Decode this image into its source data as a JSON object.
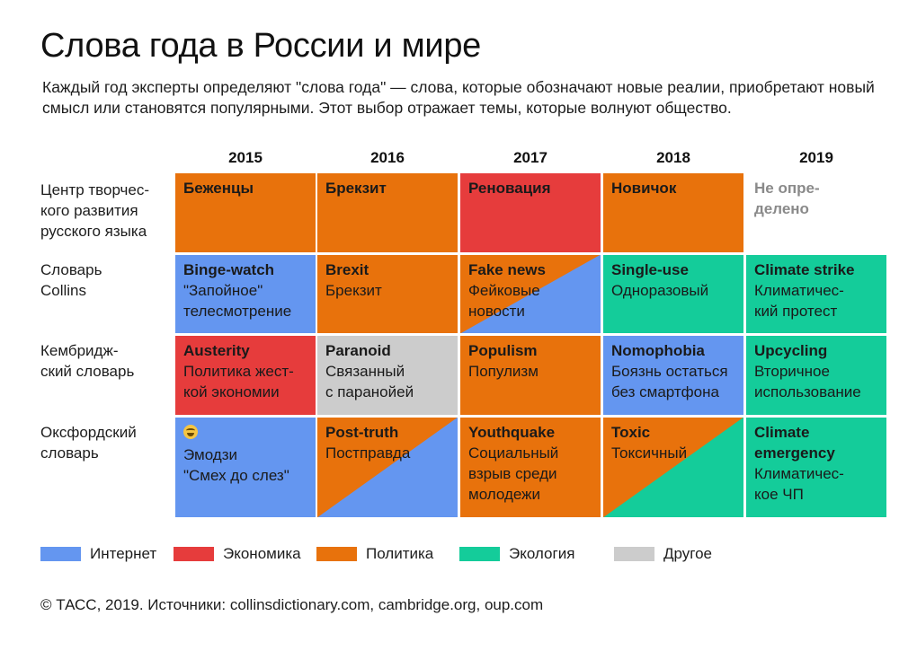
{
  "title": "Слова года в России и мире",
  "subtitle": "Каждый год эксперты определяют \"слова года\" — слова, которые обозначают новые реалии, приобретают новый смысл или становятся популярными. Этот выбор отражает темы, которые волнуют общество.",
  "source": "© ТАСС, 2019. Источники: collinsdictionary.com, cambridge.org, oup.com",
  "colors": {
    "internet": "#6496f0",
    "economy": "#e63c3c",
    "politics": "#e8720c",
    "ecology": "#14cc9a",
    "other": "#cccccc",
    "none": "#ffffff"
  },
  "chart_data": {
    "type": "table",
    "columns": [
      "2015",
      "2016",
      "2017",
      "2018",
      "2019"
    ],
    "rows": [
      {
        "label": "Центр творчес-\nкого развития\nрусского языка",
        "cells": [
          {
            "en": "Беженцы",
            "ru": "",
            "cat": [
              "politics"
            ]
          },
          {
            "en": "Брекзит",
            "ru": "",
            "cat": [
              "politics"
            ]
          },
          {
            "en": "Реновация",
            "ru": "",
            "cat": [
              "economy"
            ]
          },
          {
            "en": "Новичок",
            "ru": "",
            "cat": [
              "politics"
            ]
          },
          {
            "en": "Не опре-\nделено",
            "ru": "",
            "cat": [
              "none"
            ],
            "muted": true
          }
        ]
      },
      {
        "label": "Словарь\nCollins",
        "cells": [
          {
            "en": "Binge-watch",
            "ru": "\"Запойное\"\nтелесмотрение",
            "cat": [
              "internet"
            ]
          },
          {
            "en": "Brexit",
            "ru": "Брекзит",
            "cat": [
              "politics"
            ]
          },
          {
            "en": "Fake news",
            "ru": "Фейковые\nновости",
            "cat": [
              "politics",
              "internet"
            ]
          },
          {
            "en": "Single-use",
            "ru": "Одноразовый",
            "cat": [
              "ecology"
            ]
          },
          {
            "en": "Climate strike",
            "ru": "Климатичес-\nкий протест",
            "cat": [
              "ecology"
            ]
          }
        ]
      },
      {
        "label": "Кембридж-\nский словарь",
        "cells": [
          {
            "en": "Austerity",
            "ru": "Политика жест-\nкой экономии",
            "cat": [
              "economy"
            ]
          },
          {
            "en": "Paranoid",
            "ru": "Связанный\nс паранойей",
            "cat": [
              "other"
            ]
          },
          {
            "en": "Populism",
            "ru": "Популизм",
            "cat": [
              "politics"
            ]
          },
          {
            "en": "Nomophobia",
            "ru": "Боязнь остаться\nбез смартфона",
            "cat": [
              "internet"
            ]
          },
          {
            "en": "Upcycling",
            "ru": "Вторичное\nиспользование",
            "cat": [
              "ecology"
            ]
          }
        ]
      },
      {
        "label": "Оксфордский\nсловарь",
        "cells": [
          {
            "en": "",
            "ru": "Эмодзи\n\"Смех до слез\"",
            "cat": [
              "internet"
            ],
            "emoji": "laughing-tears-emoji"
          },
          {
            "en": "Post-truth",
            "ru": "Постправда",
            "cat": [
              "politics",
              "internet"
            ]
          },
          {
            "en": "Youthquake",
            "ru": "Социальный\nвзрыв среди\nмолодежи",
            "cat": [
              "politics"
            ]
          },
          {
            "en": "Toxic",
            "ru": "Токсичный",
            "cat": [
              "politics",
              "ecology"
            ]
          },
          {
            "en": "Climate\nemergency",
            "ru": "Климатичес-\nкое ЧП",
            "cat": [
              "ecology"
            ]
          }
        ]
      }
    ],
    "legend": [
      {
        "key": "internet",
        "label": "Интернет"
      },
      {
        "key": "economy",
        "label": "Экономика"
      },
      {
        "key": "politics",
        "label": "Политика"
      },
      {
        "key": "ecology",
        "label": "Экология"
      },
      {
        "key": "other",
        "label": "Другое"
      }
    ]
  }
}
